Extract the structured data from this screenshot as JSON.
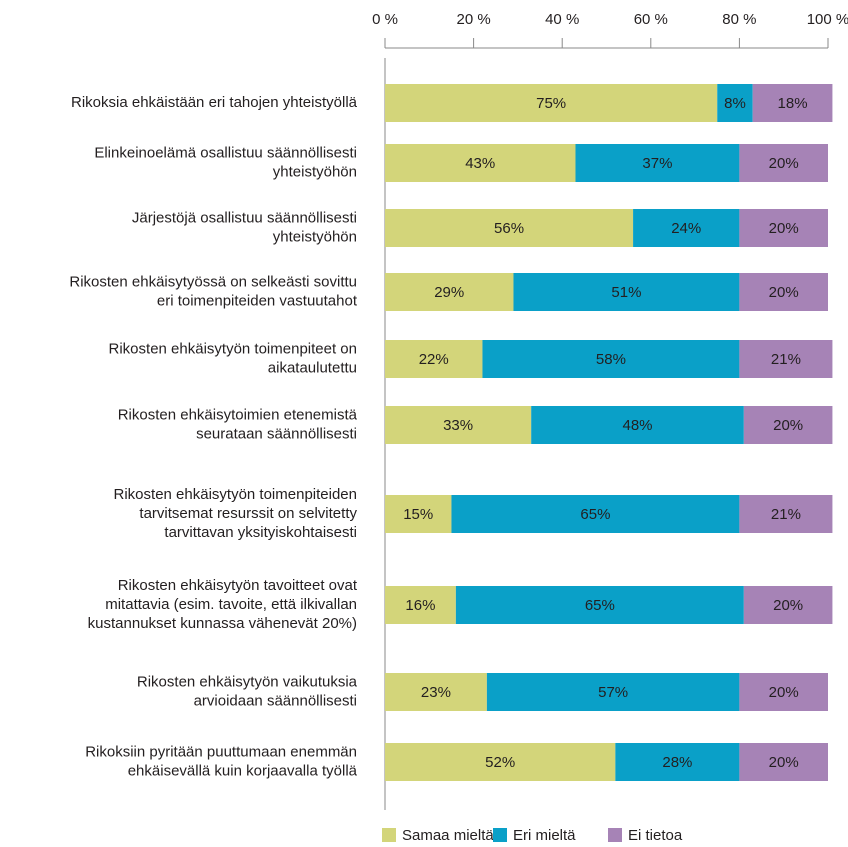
{
  "chart_data": {
    "type": "stacked-bar-horizontal",
    "categories": [
      "Rikoksia ehkäistään eri tahojen yhteistyöllä",
      "Elinkeinoelämä osallistuu säännöllisesti\nyhteistyöhön",
      "Järjestöjä osallistuu säännöllisesti\nyhteistyöhön",
      "Rikosten ehkäisytyössä on selkeästi sovittu\neri toimenpiteiden vastuutahot",
      "Rikosten ehkäisytyön toimenpiteet on\naikataulutettu",
      "Rikosten ehkäisytoimien etenemistä\nseurataan säännöllisesti",
      "Rikosten ehkäisytyön toimenpiteiden\ntarvitsemat resurssit on selvitetty\ntarvittavan yksityiskohtaisesti",
      "Rikosten ehkäisytyön tavoitteet ovat\nmitattavia (esim. tavoite, että ilkivallan\nkustannukset kunnassa vähenevät 20%)",
      "Rikosten ehkäisytyön vaikutuksia\narvioidaan säännöllisesti",
      "Rikoksiin pyritään puuttumaan enemmän\nehkäisevällä kuin korjaavalla työllä"
    ],
    "series": [
      {
        "name": "Samaa mieltä",
        "color": "#d3d57a",
        "values": [
          75,
          43,
          56,
          29,
          22,
          33,
          15,
          16,
          23,
          52
        ],
        "value_labels": [
          "75%",
          "43%",
          "56%",
          "29%",
          "22%",
          "33%",
          "15%",
          "16%",
          "23%",
          "52%"
        ]
      },
      {
        "name": "Eri mieltä",
        "color": "#0aa0c8",
        "values": [
          8,
          37,
          24,
          51,
          58,
          48,
          65,
          65,
          57,
          28
        ],
        "value_labels": [
          "8%",
          "37%",
          "24%",
          "51%",
          "58%",
          "48%",
          "65%",
          "65%",
          "57%",
          "28%"
        ]
      },
      {
        "name": "Ei tietoa",
        "color": "#a683b6",
        "values": [
          18,
          20,
          20,
          20,
          21,
          20,
          21,
          20,
          20,
          20
        ],
        "value_labels": [
          "18%",
          "20%",
          "20%",
          "20%",
          "21%",
          "20%",
          "21%",
          "20%",
          "20%",
          "20%"
        ]
      }
    ],
    "xlim": [
      0,
      100
    ],
    "xticks": [
      {
        "value": 0,
        "label": "0 %"
      },
      {
        "value": 20,
        "label": "20 %"
      },
      {
        "value": 40,
        "label": "40 %"
      },
      {
        "value": 60,
        "label": "60 %"
      },
      {
        "value": 80,
        "label": "80 %"
      },
      {
        "value": 100,
        "label": "100 %"
      }
    ],
    "legend": "bottom"
  }
}
